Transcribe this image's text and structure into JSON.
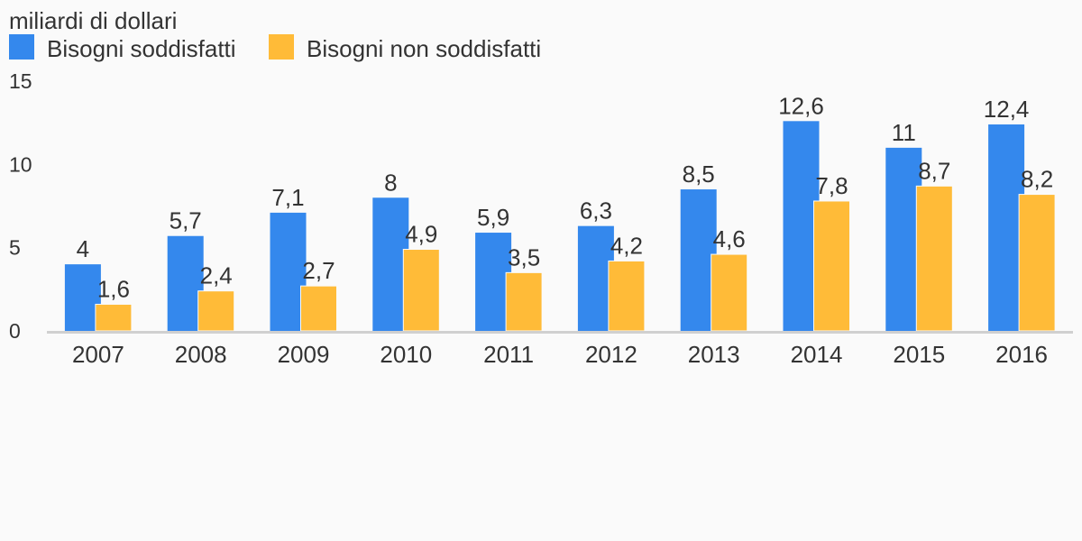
{
  "chart_data": {
    "type": "bar",
    "title": "",
    "unit_label": "miliardi di dollari",
    "xlabel": "",
    "ylabel": "",
    "categories": [
      "2007",
      "2008",
      "2009",
      "2010",
      "2011",
      "2012",
      "2013",
      "2014",
      "2015",
      "2016"
    ],
    "series": [
      {
        "name": "Bisogni soddisfatti",
        "color": "#3488ed",
        "values": [
          4,
          5.7,
          7.1,
          8,
          5.9,
          6.3,
          8.5,
          12.6,
          11,
          12.4
        ],
        "labels": [
          "4",
          "5,7",
          "7,1",
          "8",
          "5,9",
          "6,3",
          "8,5",
          "12,6",
          "11",
          "12,4"
        ]
      },
      {
        "name": "Bisogni non soddisfatti",
        "color": "#ffbb38",
        "values": [
          1.6,
          2.4,
          2.7,
          4.9,
          3.5,
          4.2,
          4.6,
          7.8,
          8.7,
          8.2
        ],
        "labels": [
          "1,6",
          "2,4",
          "2,7",
          "4,9",
          "3,5",
          "4,2",
          "4,6",
          "7,8",
          "8,7",
          "8,2"
        ]
      }
    ],
    "ylim": [
      0,
      15
    ],
    "yticks": [
      0,
      5,
      10,
      15
    ],
    "ytick_labels": [
      "0",
      "5",
      "10",
      "15"
    ],
    "grid": false,
    "legend_position": "top-left"
  }
}
